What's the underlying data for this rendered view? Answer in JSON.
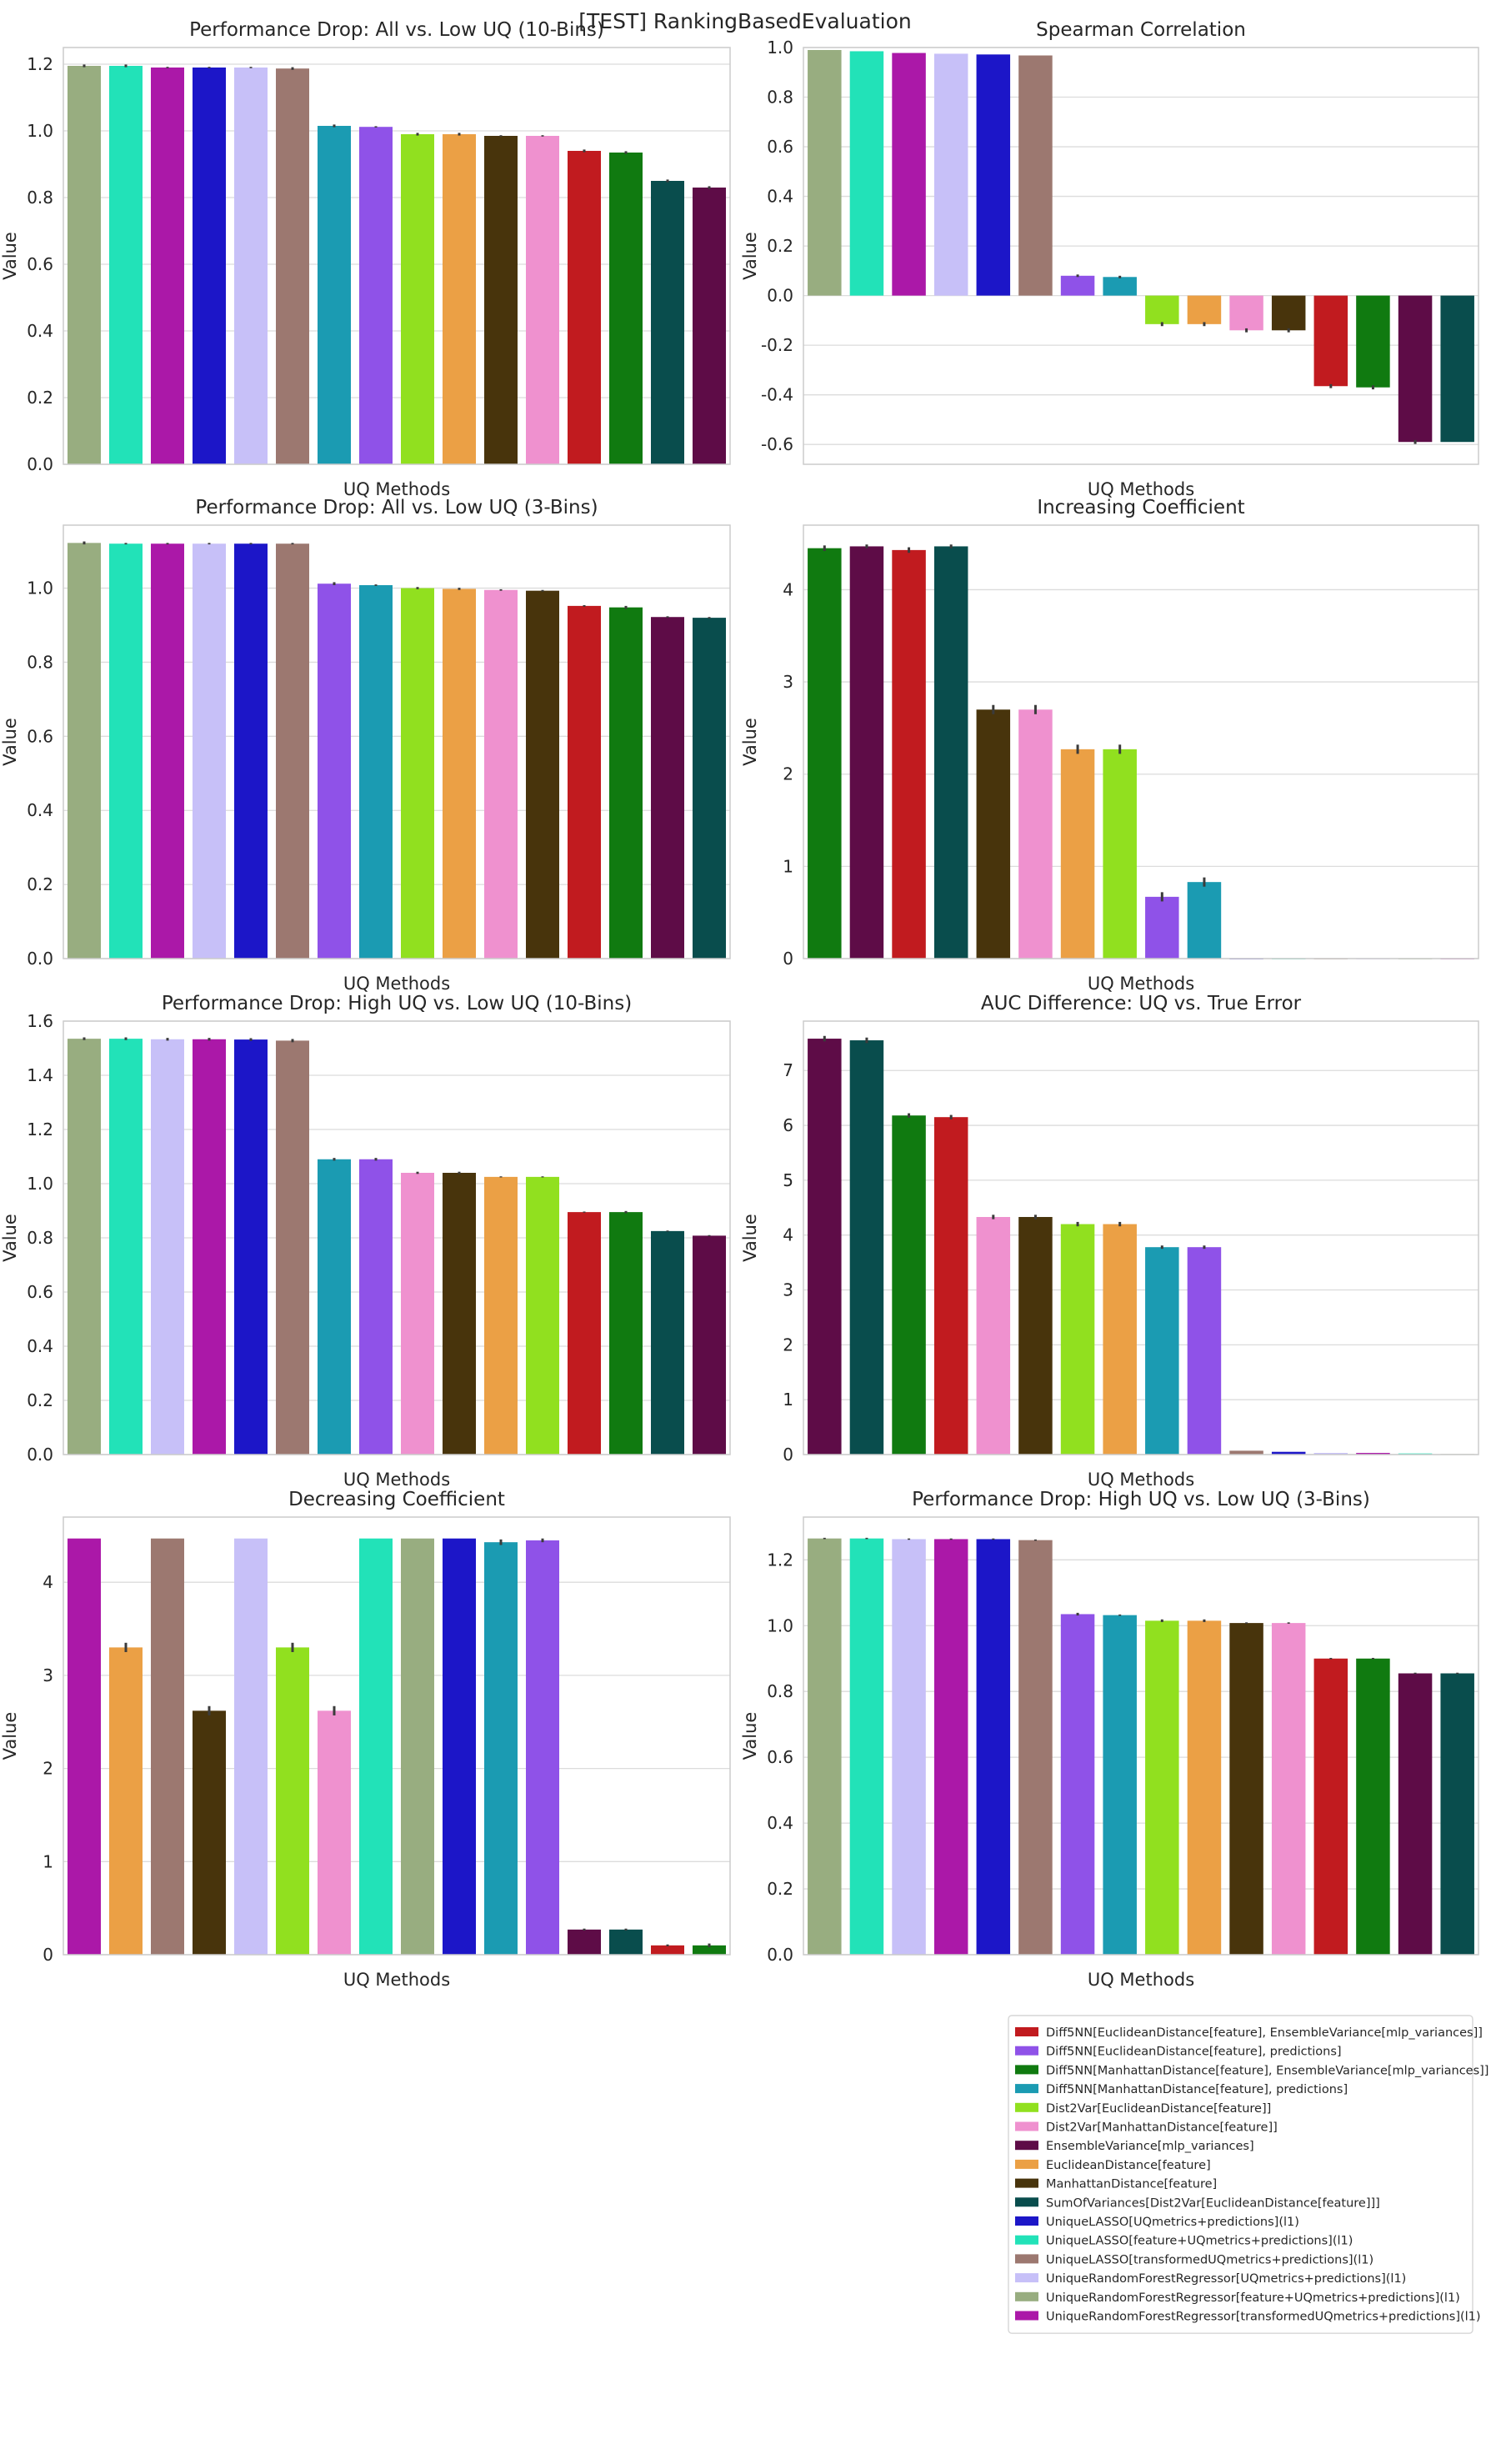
{
  "suptitle": "[TEST] RankingBasedEvaluation",
  "colors": {
    "Diff5NN[EuclideanDistance[feature], EnsembleVariance[mlp_variances]]": "#c11b1f",
    "Diff5NN[EuclideanDistance[feature], predictions]": "#8f52e8",
    "Diff5NN[ManhattanDistance[feature], EnsembleVariance[mlp_variances]]": "#107a10",
    "Diff5NN[ManhattanDistance[feature], predictions]": "#1b9bb2",
    "Dist2Var[EuclideanDistance[feature]]": "#91e01f",
    "Dist2Var[ManhattanDistance[feature]]": "#ef91cf",
    "EnsembleVariance[mlp_variances]": "#5e0c47",
    "EuclideanDistance[feature]": "#eba045",
    "ManhattanDistance[feature]": "#48340c",
    "SumOfVariances[Dist2Var[EuclideanDistance[feature]]]": "#094d4d",
    "UniqueLASSO[UQmetrics+predictions](l1)": "#1c16c8",
    "UniqueLASSO[feature+UQmetrics+predictions](l1)": "#22e2b8",
    "UniqueLASSO[transformedUQmetrics+predictions](l1)": "#9c7870",
    "UniqueRandomForestRegressor[UQmetrics+predictions](l1)": "#c7c0f8",
    "UniqueRandomForestRegressor[feature+UQmetrics+predictions](l1)": "#98ad80",
    "UniqueRandomForestRegressor[transformedUQmetrics+predictions](l1)": "#ab18a8"
  },
  "legend": {
    "placement": "below-right",
    "entries": [
      "Diff5NN[EuclideanDistance[feature], EnsembleVariance[mlp_variances]]",
      "Diff5NN[EuclideanDistance[feature], predictions]",
      "Diff5NN[ManhattanDistance[feature], EnsembleVariance[mlp_variances]]",
      "Diff5NN[ManhattanDistance[feature], predictions]",
      "Dist2Var[EuclideanDistance[feature]]",
      "Dist2Var[ManhattanDistance[feature]]",
      "EnsembleVariance[mlp_variances]",
      "EuclideanDistance[feature]",
      "ManhattanDistance[feature]",
      "SumOfVariances[Dist2Var[EuclideanDistance[feature]]]",
      "UniqueLASSO[UQmetrics+predictions](l1)",
      "UniqueLASSO[feature+UQmetrics+predictions](l1)",
      "UniqueLASSO[transformedUQmetrics+predictions](l1)",
      "UniqueRandomForestRegressor[UQmetrics+predictions](l1)",
      "UniqueRandomForestRegressor[feature+UQmetrics+predictions](l1)",
      "UniqueRandomForestRegressor[transformedUQmetrics+predictions](l1)"
    ]
  },
  "chart_data": [
    {
      "type": "bar",
      "title": "Performance Drop: All vs. Low UQ (10-Bins)",
      "xlabel": "UQ Methods",
      "ylabel": "Value",
      "ylim": [
        0,
        1.25
      ],
      "yticks": [
        0.0,
        0.2,
        0.4,
        0.6,
        0.8,
        1.0,
        1.2
      ],
      "grid": true,
      "categories": [
        "UniqueRandomForestRegressor[feature+UQmetrics+predictions](l1)",
        "UniqueLASSO[feature+UQmetrics+predictions](l1)",
        "UniqueRandomForestRegressor[transformedUQmetrics+predictions](l1)",
        "UniqueLASSO[UQmetrics+predictions](l1)",
        "UniqueRandomForestRegressor[UQmetrics+predictions](l1)",
        "UniqueLASSO[transformedUQmetrics+predictions](l1)",
        "Diff5NN[ManhattanDistance[feature], predictions]",
        "Diff5NN[EuclideanDistance[feature], predictions]",
        "Dist2Var[EuclideanDistance[feature]]",
        "EuclideanDistance[feature]",
        "ManhattanDistance[feature]",
        "Dist2Var[ManhattanDistance[feature]]",
        "Diff5NN[EuclideanDistance[feature], EnsembleVariance[mlp_variances]]",
        "Diff5NN[ManhattanDistance[feature], EnsembleVariance[mlp_variances]]",
        "SumOfVariances[Dist2Var[EuclideanDistance[feature]]]",
        "EnsembleVariance[mlp_variances]"
      ],
      "values": [
        1.195,
        1.195,
        1.19,
        1.19,
        1.19,
        1.187,
        1.015,
        1.012,
        0.99,
        0.99,
        0.985,
        0.985,
        0.94,
        0.935,
        0.85,
        0.83
      ],
      "errors": [
        0.004,
        0.004,
        0.002,
        0.002,
        0.002,
        0.004,
        0.004,
        0.002,
        0.004,
        0.004,
        0.002,
        0.002,
        0.004,
        0.004,
        0.004,
        0.004
      ]
    },
    {
      "type": "bar",
      "title": "Spearman Correlation",
      "xlabel": "UQ Methods",
      "ylabel": "Value",
      "ylim": [
        -0.68,
        1.0
      ],
      "yticks": [
        -0.6,
        -0.4,
        -0.2,
        0.0,
        0.2,
        0.4,
        0.6,
        0.8,
        1.0
      ],
      "grid": true,
      "categories": [
        "UniqueRandomForestRegressor[feature+UQmetrics+predictions](l1)",
        "UniqueLASSO[feature+UQmetrics+predictions](l1)",
        "UniqueRandomForestRegressor[transformedUQmetrics+predictions](l1)",
        "UniqueRandomForestRegressor[UQmetrics+predictions](l1)",
        "UniqueLASSO[UQmetrics+predictions](l1)",
        "UniqueLASSO[transformedUQmetrics+predictions](l1)",
        "Diff5NN[EuclideanDistance[feature], predictions]",
        "Diff5NN[ManhattanDistance[feature], predictions]",
        "Dist2Var[EuclideanDistance[feature]]",
        "EuclideanDistance[feature]",
        "Dist2Var[ManhattanDistance[feature]]",
        "ManhattanDistance[feature]",
        "Diff5NN[EuclideanDistance[feature], EnsembleVariance[mlp_variances]]",
        "Diff5NN[ManhattanDistance[feature], EnsembleVariance[mlp_variances]]",
        "EnsembleVariance[mlp_variances]",
        "SumOfVariances[Dist2Var[EuclideanDistance[feature]]]"
      ],
      "values": [
        0.99,
        0.985,
        0.978,
        0.975,
        0.972,
        0.968,
        0.08,
        0.075,
        -0.115,
        -0.115,
        -0.14,
        -0.14,
        -0.365,
        -0.37,
        -0.59,
        -0.59
      ],
      "errors": [
        0,
        0,
        0,
        0,
        0,
        0,
        0.005,
        0.005,
        0.008,
        0.008,
        0.008,
        0.008,
        0.008,
        0.008,
        0.008,
        0
      ]
    },
    {
      "type": "bar",
      "title": "Performance Drop: All vs. Low UQ (3-Bins)",
      "xlabel": "UQ Methods",
      "ylabel": "Value",
      "ylim": [
        0,
        1.17
      ],
      "yticks": [
        0.0,
        0.2,
        0.4,
        0.6,
        0.8,
        1.0
      ],
      "grid": true,
      "categories": [
        "UniqueRandomForestRegressor[feature+UQmetrics+predictions](l1)",
        "UniqueLASSO[feature+UQmetrics+predictions](l1)",
        "UniqueRandomForestRegressor[transformedUQmetrics+predictions](l1)",
        "UniqueRandomForestRegressor[UQmetrics+predictions](l1)",
        "UniqueLASSO[UQmetrics+predictions](l1)",
        "UniqueLASSO[transformedUQmetrics+predictions](l1)",
        "Diff5NN[EuclideanDistance[feature], predictions]",
        "Diff5NN[ManhattanDistance[feature], predictions]",
        "Dist2Var[EuclideanDistance[feature]]",
        "EuclideanDistance[feature]",
        "Dist2Var[ManhattanDistance[feature]]",
        "ManhattanDistance[feature]",
        "Diff5NN[EuclideanDistance[feature], EnsembleVariance[mlp_variances]]",
        "Diff5NN[ManhattanDistance[feature], EnsembleVariance[mlp_variances]]",
        "EnsembleVariance[mlp_variances]",
        "SumOfVariances[Dist2Var[EuclideanDistance[feature]]]"
      ],
      "values": [
        1.122,
        1.12,
        1.12,
        1.12,
        1.12,
        1.12,
        1.012,
        1.008,
        1.0,
        0.998,
        0.995,
        0.993,
        0.952,
        0.948,
        0.922,
        0.92
      ],
      "errors": [
        0.004,
        0.002,
        0.002,
        0.002,
        0.002,
        0.002,
        0.004,
        0.002,
        0.003,
        0.003,
        0.002,
        0.002,
        0.002,
        0.004,
        0.002,
        0.002
      ]
    },
    {
      "type": "bar",
      "title": "Increasing Coefficient",
      "xlabel": "UQ Methods",
      "ylabel": "Value",
      "ylim": [
        0,
        4.7
      ],
      "yticks": [
        0,
        1,
        2,
        3,
        4
      ],
      "grid": true,
      "categories": [
        "Diff5NN[ManhattanDistance[feature], EnsembleVariance[mlp_variances]]",
        "EnsembleVariance[mlp_variances]",
        "Diff5NN[EuclideanDistance[feature], EnsembleVariance[mlp_variances]]",
        "SumOfVariances[Dist2Var[EuclideanDistance[feature]]]",
        "ManhattanDistance[feature]",
        "Dist2Var[ManhattanDistance[feature]]",
        "EuclideanDistance[feature]",
        "Dist2Var[EuclideanDistance[feature]]",
        "Diff5NN[EuclideanDistance[feature], predictions]",
        "Diff5NN[ManhattanDistance[feature], predictions]",
        "UniqueLASSO[UQmetrics+predictions](l1)",
        "UniqueLASSO[feature+UQmetrics+predictions](l1)",
        "UniqueLASSO[transformedUQmetrics+predictions](l1)",
        "UniqueRandomForestRegressor[UQmetrics+predictions](l1)",
        "UniqueRandomForestRegressor[feature+UQmetrics+predictions](l1)",
        "UniqueRandomForestRegressor[transformedUQmetrics+predictions](l1)"
      ],
      "values": [
        4.45,
        4.47,
        4.43,
        4.47,
        2.7,
        2.7,
        2.27,
        2.27,
        0.67,
        0.83,
        0,
        0,
        0,
        0,
        0,
        0
      ],
      "errors": [
        0.03,
        0.02,
        0.03,
        0.02,
        0.05,
        0.05,
        0.05,
        0.05,
        0.05,
        0.05,
        0,
        0,
        0,
        0,
        0,
        0
      ]
    },
    {
      "type": "bar",
      "title": "Performance Drop: High UQ vs. Low UQ (10-Bins)",
      "xlabel": "UQ Methods",
      "ylabel": "Value",
      "ylim": [
        0,
        1.6
      ],
      "yticks": [
        0.0,
        0.2,
        0.4,
        0.6,
        0.8,
        1.0,
        1.2,
        1.4,
        1.6
      ],
      "grid": true,
      "categories": [
        "UniqueRandomForestRegressor[feature+UQmetrics+predictions](l1)",
        "UniqueLASSO[feature+UQmetrics+predictions](l1)",
        "UniqueRandomForestRegressor[UQmetrics+predictions](l1)",
        "UniqueRandomForestRegressor[transformedUQmetrics+predictions](l1)",
        "UniqueLASSO[UQmetrics+predictions](l1)",
        "UniqueLASSO[transformedUQmetrics+predictions](l1)",
        "Diff5NN[ManhattanDistance[feature], predictions]",
        "Diff5NN[EuclideanDistance[feature], predictions]",
        "Dist2Var[ManhattanDistance[feature]]",
        "ManhattanDistance[feature]",
        "EuclideanDistance[feature]",
        "Dist2Var[EuclideanDistance[feature]]",
        "Diff5NN[EuclideanDistance[feature], EnsembleVariance[mlp_variances]]",
        "Diff5NN[ManhattanDistance[feature], EnsembleVariance[mlp_variances]]",
        "SumOfVariances[Dist2Var[EuclideanDistance[feature]]]",
        "EnsembleVariance[mlp_variances]"
      ],
      "values": [
        1.535,
        1.535,
        1.533,
        1.533,
        1.532,
        1.528,
        1.09,
        1.09,
        1.04,
        1.04,
        1.025,
        1.025,
        0.895,
        0.895,
        0.825,
        0.808
      ],
      "errors": [
        0.005,
        0.005,
        0.005,
        0.005,
        0.005,
        0.006,
        0.005,
        0.005,
        0.004,
        0.004,
        0.002,
        0.002,
        0.002,
        0.004,
        0.002,
        0.002
      ]
    },
    {
      "type": "bar",
      "title": "AUC Difference: UQ vs. True Error",
      "xlabel": "UQ Methods",
      "ylabel": "Value",
      "ylim": [
        0,
        7.9
      ],
      "yticks": [
        0,
        1,
        2,
        3,
        4,
        5,
        6,
        7
      ],
      "grid": true,
      "categories": [
        "EnsembleVariance[mlp_variances]",
        "SumOfVariances[Dist2Var[EuclideanDistance[feature]]]",
        "Diff5NN[ManhattanDistance[feature], EnsembleVariance[mlp_variances]]",
        "Diff5NN[EuclideanDistance[feature], EnsembleVariance[mlp_variances]]",
        "Dist2Var[ManhattanDistance[feature]]",
        "ManhattanDistance[feature]",
        "Dist2Var[EuclideanDistance[feature]]",
        "EuclideanDistance[feature]",
        "Diff5NN[ManhattanDistance[feature], predictions]",
        "Diff5NN[EuclideanDistance[feature], predictions]",
        "UniqueLASSO[transformedUQmetrics+predictions](l1)",
        "UniqueLASSO[UQmetrics+predictions](l1)",
        "UniqueRandomForestRegressor[UQmetrics+predictions](l1)",
        "UniqueRandomForestRegressor[transformedUQmetrics+predictions](l1)",
        "UniqueLASSO[feature+UQmetrics+predictions](l1)",
        "UniqueRandomForestRegressor[feature+UQmetrics+predictions](l1)"
      ],
      "values": [
        7.58,
        7.55,
        6.18,
        6.15,
        4.33,
        4.33,
        4.2,
        4.2,
        3.78,
        3.78,
        0.07,
        0.05,
        0.03,
        0.03,
        0.02,
        0.01
      ],
      "errors": [
        0.05,
        0.05,
        0.04,
        0.04,
        0.04,
        0.04,
        0.04,
        0.04,
        0.03,
        0.03,
        0,
        0,
        0,
        0,
        0,
        0
      ]
    },
    {
      "type": "bar",
      "title": "Decreasing Coefficient",
      "xlabel": "UQ Methods",
      "ylabel": "Value",
      "ylim": [
        0,
        4.7
      ],
      "yticks": [
        0,
        1,
        2,
        3,
        4
      ],
      "grid": true,
      "categories": [
        "UniqueRandomForestRegressor[transformedUQmetrics+predictions](l1)",
        "EuclideanDistance[feature]",
        "UniqueLASSO[transformedUQmetrics+predictions](l1)",
        "ManhattanDistance[feature]",
        "UniqueRandomForestRegressor[UQmetrics+predictions](l1)",
        "Dist2Var[EuclideanDistance[feature]]",
        "Dist2Var[ManhattanDistance[feature]]",
        "UniqueLASSO[feature+UQmetrics+predictions](l1)",
        "UniqueRandomForestRegressor[feature+UQmetrics+predictions](l1)",
        "UniqueLASSO[UQmetrics+predictions](l1)",
        "Diff5NN[ManhattanDistance[feature], predictions]",
        "Diff5NN[EuclideanDistance[feature], predictions]",
        "EnsembleVariance[mlp_variances]",
        "SumOfVariances[Dist2Var[EuclideanDistance[feature]]]",
        "Diff5NN[EuclideanDistance[feature], EnsembleVariance[mlp_variances]]",
        "Diff5NN[ManhattanDistance[feature], EnsembleVariance[mlp_variances]]"
      ],
      "values": [
        4.47,
        3.3,
        4.47,
        2.62,
        4.47,
        3.3,
        2.62,
        4.47,
        4.47,
        4.47,
        4.43,
        4.45,
        0.27,
        0.27,
        0.1,
        0.1
      ],
      "errors": [
        0,
        0.05,
        0,
        0.05,
        0,
        0.05,
        0.05,
        0,
        0,
        0,
        0.03,
        0.02,
        0.01,
        0.01,
        0.01,
        0.02
      ]
    },
    {
      "type": "bar",
      "title": "Performance Drop: High UQ vs. Low UQ (3-Bins)",
      "xlabel": "UQ Methods",
      "ylabel": "Value",
      "ylim": [
        0,
        1.33
      ],
      "yticks": [
        0.0,
        0.2,
        0.4,
        0.6,
        0.8,
        1.0,
        1.2
      ],
      "grid": true,
      "categories": [
        "UniqueRandomForestRegressor[feature+UQmetrics+predictions](l1)",
        "UniqueLASSO[feature+UQmetrics+predictions](l1)",
        "UniqueRandomForestRegressor[UQmetrics+predictions](l1)",
        "UniqueRandomForestRegressor[transformedUQmetrics+predictions](l1)",
        "UniqueLASSO[UQmetrics+predictions](l1)",
        "UniqueLASSO[transformedUQmetrics+predictions](l1)",
        "Diff5NN[EuclideanDistance[feature], predictions]",
        "Diff5NN[ManhattanDistance[feature], predictions]",
        "Dist2Var[EuclideanDistance[feature]]",
        "EuclideanDistance[feature]",
        "ManhattanDistance[feature]",
        "Dist2Var[ManhattanDistance[feature]]",
        "Diff5NN[EuclideanDistance[feature], EnsembleVariance[mlp_variances]]",
        "Diff5NN[ManhattanDistance[feature], EnsembleVariance[mlp_variances]]",
        "EnsembleVariance[mlp_variances]",
        "SumOfVariances[Dist2Var[EuclideanDistance[feature]]]"
      ],
      "values": [
        1.265,
        1.265,
        1.263,
        1.263,
        1.263,
        1.26,
        1.035,
        1.032,
        1.015,
        1.015,
        1.008,
        1.008,
        0.9,
        0.9,
        0.855,
        0.855
      ],
      "errors": [
        0.002,
        0.002,
        0.002,
        0.002,
        0.002,
        0.002,
        0.004,
        0.002,
        0.004,
        0.004,
        0.002,
        0.002,
        0.002,
        0.002,
        0.002,
        0.002
      ]
    }
  ]
}
